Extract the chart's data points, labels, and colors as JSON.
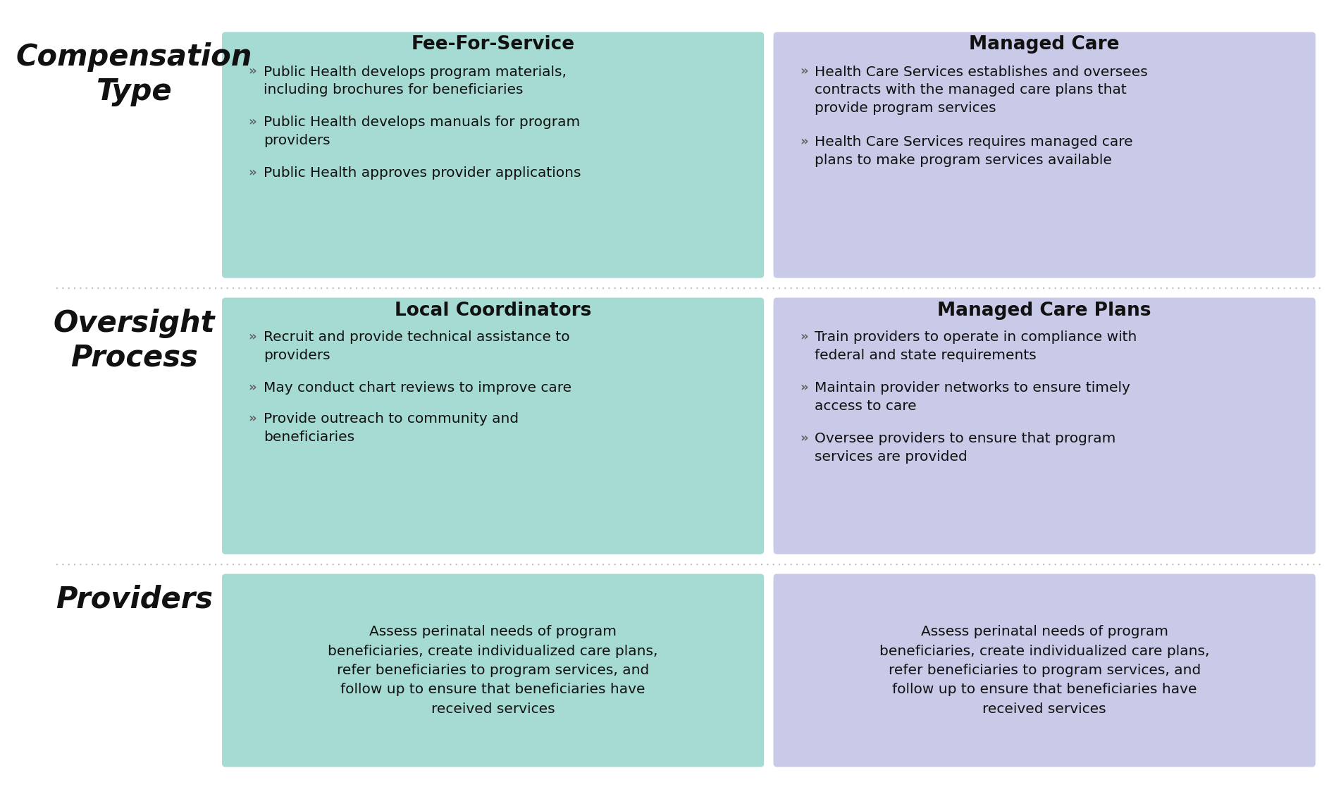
{
  "bg_color": "#ffffff",
  "teal_color": "#a5dbd3",
  "lavender_color": "#c9c9e8",
  "separator_color": "#bbbbbb",
  "rows": [
    {
      "label": "Compensation\nType",
      "col1_header": "Fee-For-Service",
      "col2_header": "Managed Care",
      "col1_bullets": [
        "Public Health develops program materials,\nincluding brochures for beneficiaries",
        "Public Health develops manuals for program\nproviders",
        "Public Health approves provider applications"
      ],
      "col2_bullets": [
        "Health Care Services establishes and oversees\ncontracts with the managed care plans that\nprovide program services",
        "Health Care Services requires managed care\nplans to make program services available"
      ],
      "col1_centered": false,
      "col2_centered": false
    },
    {
      "label": "Oversight\nProcess",
      "col1_header": "Local Coordinators",
      "col2_header": "Managed Care Plans",
      "col1_bullets": [
        "Recruit and provide technical assistance to\nproviders",
        "May conduct chart reviews to improve care",
        "Provide outreach to community and\nbeneficiaries"
      ],
      "col2_bullets": [
        "Train providers to operate in compliance with\nfederal and state requirements",
        "Maintain provider networks to ensure timely\naccess to care",
        "Oversee providers to ensure that program\nservices are provided"
      ],
      "col1_centered": false,
      "col2_centered": false
    },
    {
      "label": "Providers",
      "col1_header": null,
      "col2_header": null,
      "col1_bullets": [
        "Assess perinatal needs of program\nbeneficiaries, create individualized care plans,\nrefer beneficiaries to program services, and\nfollow up to ensure that beneficiaries have\nreceived services"
      ],
      "col2_bullets": [
        "Assess perinatal needs of program\nbeneficiaries, create individualized care plans,\nrefer beneficiaries to program services, and\nfollow up to ensure that beneficiaries have\nreceived services"
      ],
      "col1_centered": true,
      "col2_centered": true
    }
  ]
}
